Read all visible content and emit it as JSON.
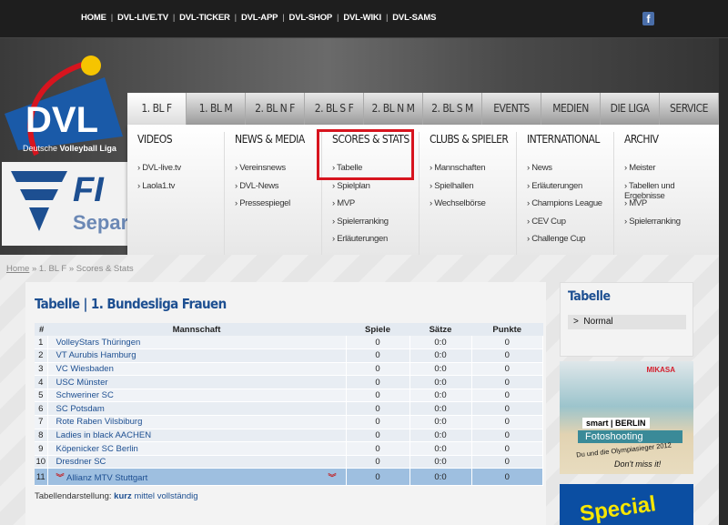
{
  "topnav": [
    "HOME",
    "DVL-LIVE.TV",
    "DVL-TICKER",
    "DVL-APP",
    "DVL-SHOP",
    "DVL-WIKI",
    "DVL-SAMS"
  ],
  "social": {
    "facebook_icon": "f"
  },
  "logo": {
    "text": "DVL",
    "subtitle_a": "Deutsche ",
    "subtitle_b": "Volleyball Liga"
  },
  "banner": {
    "text": "FI",
    "sub": "Separa"
  },
  "mainnav": [
    "1. BL F",
    "1. BL M",
    "2. BL N F",
    "2. BL S F",
    "2. BL N M",
    "2. BL S M",
    "EVENTS",
    "MEDIEN",
    "DIE LIGA",
    "SERVICE"
  ],
  "dropdown": [
    {
      "title": "VIDEOS",
      "items": [
        "DVL-live.tv",
        "Laola1.tv"
      ]
    },
    {
      "title": "NEWS & MEDIA",
      "items": [
        "Vereinsnews",
        "DVL-News",
        "Pressespiegel"
      ]
    },
    {
      "title": "SCORES & STATS",
      "items": [
        "Tabelle",
        "Spielplan",
        "MVP",
        "Spielerranking",
        "Erläuterungen"
      ]
    },
    {
      "title": "CLUBS & SPIELER",
      "items": [
        "Mannschaften",
        "Spielhallen",
        "Wechselbörse"
      ]
    },
    {
      "title": "INTERNATIONAL",
      "items": [
        "News",
        "Erläuterungen",
        "Champions League",
        "CEV Cup",
        "Challenge Cup"
      ]
    },
    {
      "title": "ARCHIV",
      "items": [
        "Meister",
        "Tabellen und Ergebnisse",
        "MVP",
        "Spielerranking"
      ]
    }
  ],
  "breadcrumb": {
    "home": "Home",
    "sep": " » ",
    "level1": "1. BL F",
    "level2": "Scores & Stats"
  },
  "main": {
    "title": "Tabelle | 1. Bundesliga Frauen",
    "columns": [
      "#",
      "Mannschaft",
      "Spiele",
      "Sätze",
      "Punkte"
    ],
    "rows": [
      [
        "1",
        "VolleyStars Thüringen",
        "0",
        "0:0",
        "0"
      ],
      [
        "2",
        "VT Aurubis Hamburg",
        "0",
        "0:0",
        "0"
      ],
      [
        "3",
        "VC Wiesbaden",
        "0",
        "0:0",
        "0"
      ],
      [
        "4",
        "USC Münster",
        "0",
        "0:0",
        "0"
      ],
      [
        "5",
        "Schweriner SC",
        "0",
        "0:0",
        "0"
      ],
      [
        "6",
        "SC Potsdam",
        "0",
        "0:0",
        "0"
      ],
      [
        "7",
        "Rote Raben Vilsbiburg",
        "0",
        "0:0",
        "0"
      ],
      [
        "8",
        "Ladies in black AACHEN",
        "0",
        "0:0",
        "0"
      ],
      [
        "9",
        "Köpenicker SC Berlin",
        "0",
        "0:0",
        "0"
      ],
      [
        "10",
        "Dresdner SC",
        "0",
        "0:0",
        "0"
      ],
      [
        "11",
        "Allianz MTV Stuttgart",
        "0",
        "0:0",
        "0"
      ]
    ],
    "highlight_color": "#9ebfe0",
    "footer": {
      "label": "Tabellendarstellung:",
      "options": [
        "kurz",
        "mittel",
        "vollständig"
      ],
      "selected": "kurz"
    }
  },
  "sidebar": {
    "title": "Tabelle",
    "items": [
      "Normal"
    ]
  },
  "ads": {
    "ad1": {
      "brand": "MIKASA",
      "sponsor": "smart | BERLIN",
      "headline": "Fotoshooting",
      "line": "Du und die Olympiasieger 2012",
      "tagline": "Don't miss it!"
    },
    "ad2": {
      "text": "Special"
    }
  }
}
